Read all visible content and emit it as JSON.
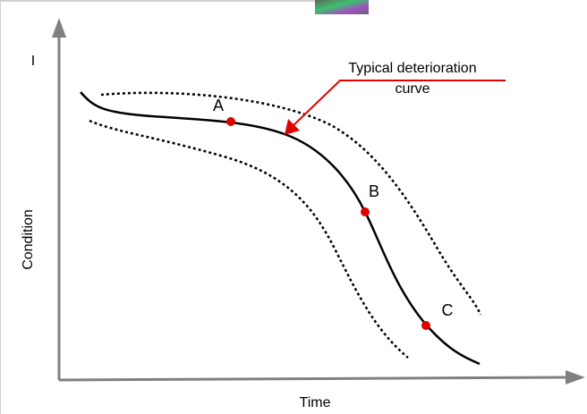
{
  "callout": {
    "line1": "Typical deterioration",
    "line2": "curve"
  },
  "points": [
    {
      "label": "A"
    },
    {
      "label": "B"
    },
    {
      "label": "C"
    }
  ],
  "axes": {
    "y_label": "Condition",
    "x_label": "Time",
    "y_mark": "I"
  }
}
